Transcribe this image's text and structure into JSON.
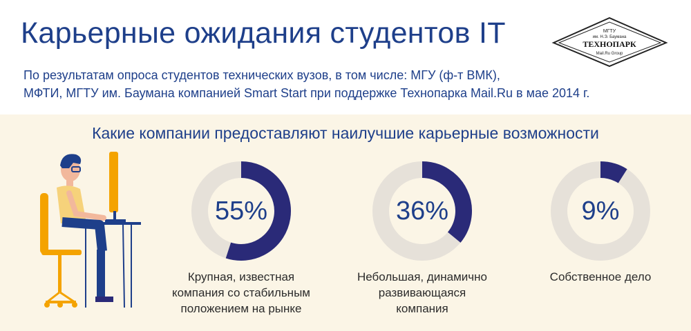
{
  "title": "Карьерные ожидания студентов IT",
  "subtitle_lines": [
    "По результатам опроса студентов технических вузов, в том числе: МГУ (ф-т ВМК),",
    "МФТИ, МГТУ им. Баумана компанией Smart Start при поддержке Технопарка Mail.Ru в мае 2014 г."
  ],
  "logo": {
    "line1": "МГТУ",
    "line2": "им. Н.Э. Баумана",
    "name": "ТЕХНОПАРК",
    "group": "Mail.Ru Group"
  },
  "colors": {
    "accent": "#2a2a78",
    "track": "#e6e1d9",
    "panel": "#fbf5e6",
    "text": "#1e3f8a"
  },
  "chart_data": {
    "type": "pie",
    "title": "Какие компании предоставляют наилучшие карьерные возможности",
    "items": [
      {
        "value": 55,
        "label": "55%",
        "caption": [
          "Крупная, известная",
          "компания со стабильным",
          "положением на рынке"
        ]
      },
      {
        "value": 36,
        "label": "36%",
        "caption": [
          "Небольшая, динамично",
          "развивающаяся",
          "компания"
        ]
      },
      {
        "value": 9,
        "label": "9%",
        "caption": [
          "Собственное дело"
        ]
      }
    ]
  }
}
